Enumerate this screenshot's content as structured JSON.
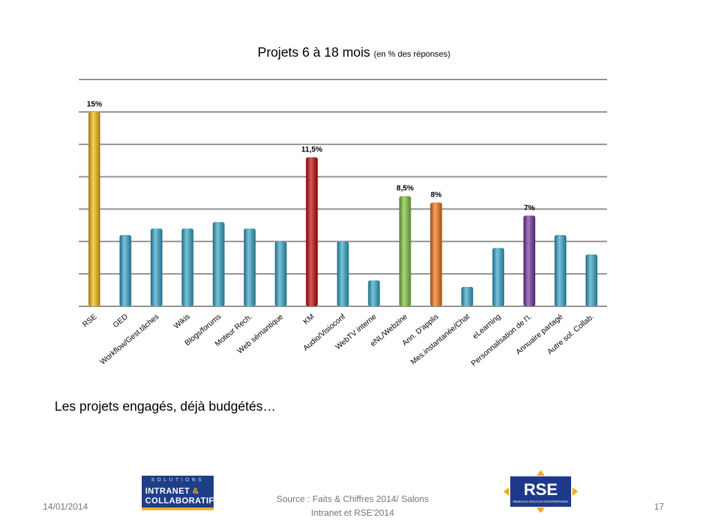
{
  "chart_data": {
    "type": "bar",
    "title": "Projets 6 à 18 mois",
    "subtitle": "(en % des réponses)",
    "xlabel": "",
    "ylabel": "",
    "ylim": [
      0,
      17.5
    ],
    "grid": true,
    "legend": "none",
    "categories": [
      "RSE",
      "GED",
      "Workflow/Gest.tâches",
      "Wikis",
      "Blogs/forums",
      "Moteur Rech.",
      "Web sémantique",
      "KM",
      "Audio/Visioconf",
      "WebTV interne",
      "eNL/Webzine",
      "Ann. D'applis",
      "Mes.instantanée/Chat",
      "eLearning",
      "Personnalisation de l'I.",
      "Annuaire partagé",
      "Autre sol. Collab."
    ],
    "values": [
      15,
      5.5,
      6,
      6,
      6.5,
      6,
      5,
      11.5,
      5,
      2,
      8.5,
      8,
      1.5,
      4.5,
      7,
      5.5,
      4
    ],
    "data_labels": [
      "15%",
      "",
      "",
      "",
      "",
      "",
      "",
      "11,5%",
      "",
      "",
      "8,5%",
      "8%",
      "",
      "",
      "7%",
      "",
      ""
    ],
    "colors": [
      "#f2b705",
      "#2fa3c6",
      "#2fa3c6",
      "#2fa3c6",
      "#2fa3c6",
      "#2fa3c6",
      "#2fa3c6",
      "#c00000",
      "#2fa3c6",
      "#2fa3c6",
      "#7dc13a",
      "#f0720f",
      "#2fa3c6",
      "#2fa3c6",
      "#7030a0",
      "#2fa3c6",
      "#2fa3c6"
    ]
  },
  "caption": "Les projets engagés, déjà budgétés…",
  "footer": {
    "date": "14/01/2014",
    "source_line1": "Source : Faits & Chiffres 2014/ Salons",
    "source_line2": "Intranet et RSE'2014",
    "page": "17"
  },
  "logos": {
    "left": {
      "line1": "SOLUTIONS",
      "line2_a": "INTRANET",
      "line2_b": "&",
      "line3": "COLLABORATIF"
    },
    "right": {
      "main": "RSE",
      "tagline": "RESEAUX SOCIAUX D'ENTREPRISES"
    }
  }
}
